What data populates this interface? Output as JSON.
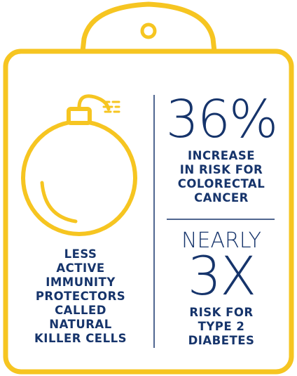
{
  "colors": {
    "frame": "#f6c521",
    "text": "#16346b"
  },
  "icons": {
    "hanger": "hanger-icon",
    "bomb": "bomb-icon"
  },
  "left_panel": {
    "caption": "LESS\nACTIVE\nIMMUNITY\nPROTECTORS\nCALLED\nNATURAL\nKILLER CELLS"
  },
  "stat_top": {
    "value": "36%",
    "caption": "INCREASE\nIN RISK FOR\nCOLORECTAL\nCANCER"
  },
  "stat_bottom": {
    "prefix": "NEARLY",
    "value": "3X",
    "caption": "RISK FOR\nTYPE 2\nDIABETES"
  }
}
